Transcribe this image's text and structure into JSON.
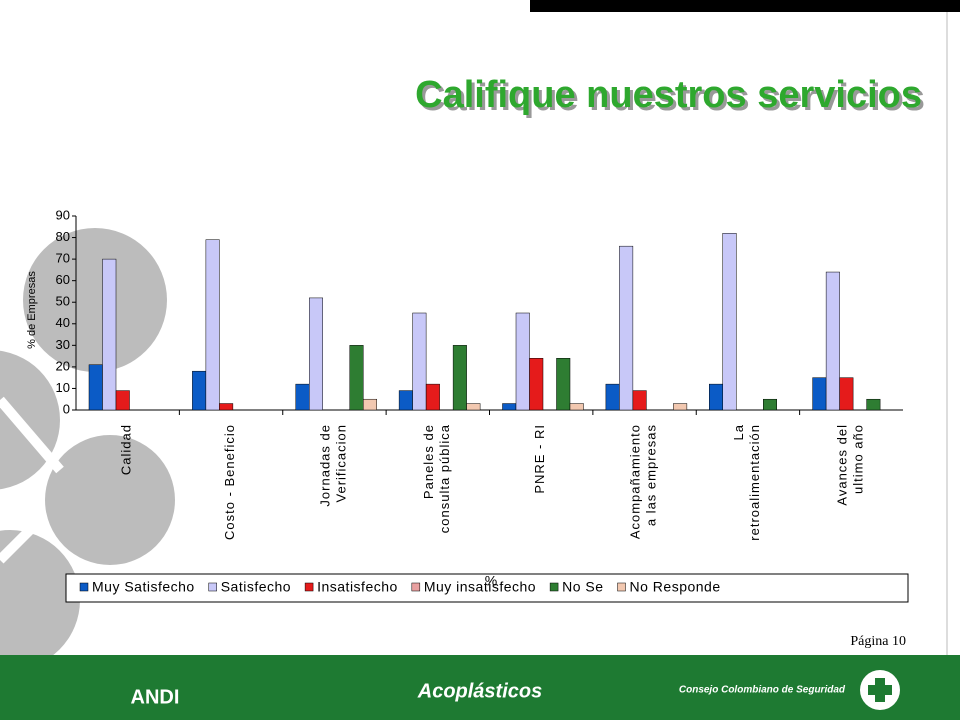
{
  "chart_data": {
    "type": "bar",
    "title": "Califique nuestros servicios",
    "y_label": "% de Empresas",
    "legend_note": "%",
    "page_label": "Página 10",
    "footer_logos": [
      "ANDI",
      "Acoplásticos",
      "Consejo Colombiano de Seguridad"
    ],
    "categories": [
      "Calidad",
      "Costo - Beneficio",
      "Jornadas de\nVerificacion",
      "Paneles de\nconsulta pública",
      "PNRE - RI",
      "Acompañamiento\na las empresas",
      "La\nretroalimentación",
      "Avances del\nultimo año"
    ],
    "series": [
      {
        "name": "Muy Satisfecho",
        "color": "#0b5bc6",
        "values": [
          21,
          18,
          12,
          9,
          3,
          12,
          12,
          15
        ]
      },
      {
        "name": "Satisfecho",
        "color": "#c8c8f8",
        "values": [
          70,
          79,
          52,
          45,
          45,
          76,
          82,
          64
        ]
      },
      {
        "name": "Insatisfecho",
        "color": "#e51b1b",
        "values": [
          9,
          3,
          0,
          12,
          24,
          9,
          0,
          15
        ]
      },
      {
        "name": "Muy insatisfecho",
        "color": "#e8a0a0",
        "values": [
          0,
          0,
          0,
          0,
          0,
          0,
          0,
          0
        ]
      },
      {
        "name": "No Se",
        "color": "#2e7d32",
        "values": [
          0,
          0,
          30,
          30,
          24,
          0,
          5,
          5
        ]
      },
      {
        "name": "No Responde",
        "color": "#f2c8b0",
        "values": [
          0,
          0,
          5,
          3,
          3,
          3,
          0,
          0
        ]
      }
    ],
    "ylim": [
      0,
      90
    ],
    "yticks": [
      0,
      10,
      20,
      30,
      40,
      50,
      60,
      70,
      80,
      90
    ],
    "grid": false,
    "legend": "bottom"
  }
}
